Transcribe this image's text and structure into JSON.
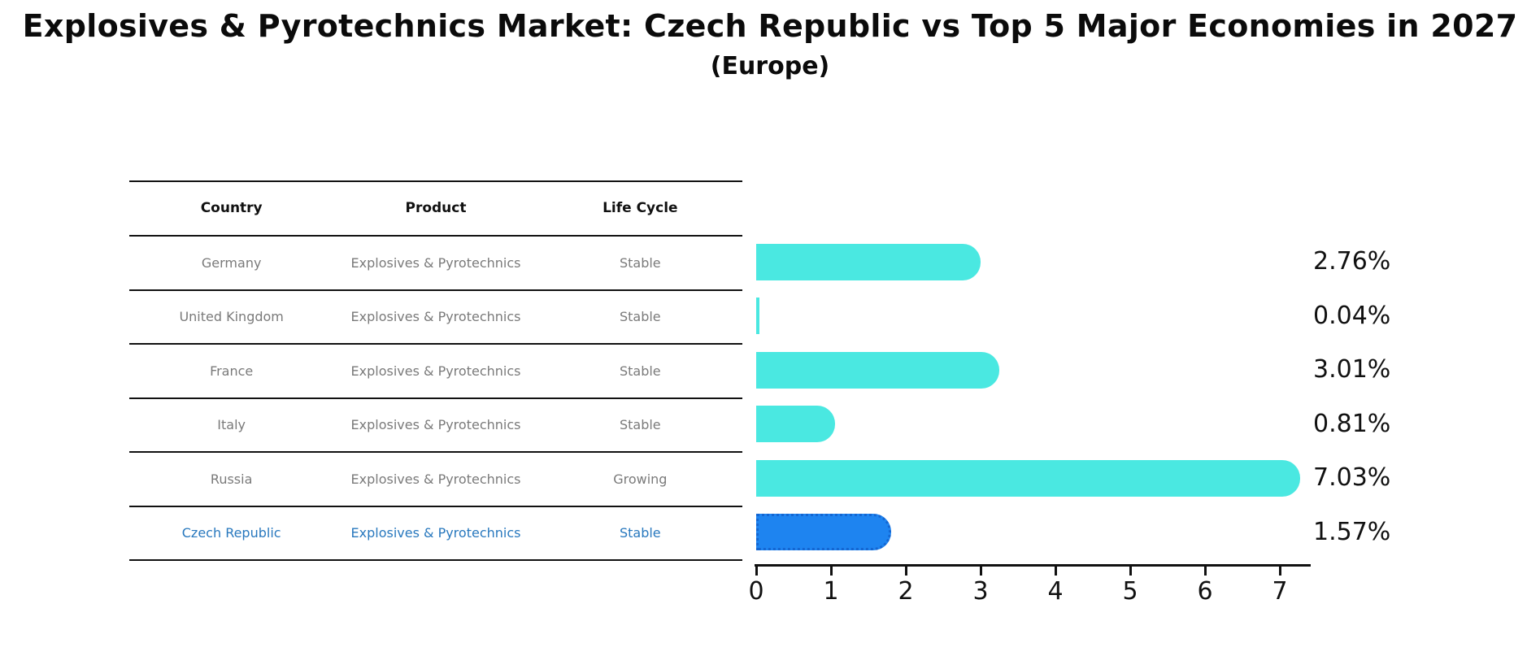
{
  "title": "Explosives & Pyrotechnics Market: Czech Republic vs Top 5 Major Economies in 2027",
  "subtitle": "(Europe)",
  "table": {
    "headers": [
      "Country",
      "Product",
      "Life Cycle"
    ],
    "rows": [
      {
        "country": "Germany",
        "product": "Explosives & Pyrotechnics",
        "life_cycle": "Stable",
        "highlight": false
      },
      {
        "country": "United Kingdom",
        "product": "Explosives & Pyrotechnics",
        "life_cycle": "Stable",
        "highlight": false
      },
      {
        "country": "France",
        "product": "Explosives & Pyrotechnics",
        "life_cycle": "Stable",
        "highlight": false
      },
      {
        "country": "Italy",
        "product": "Explosives & Pyrotechnics",
        "life_cycle": "Stable",
        "highlight": false
      },
      {
        "country": "Russia",
        "product": "Explosives & Pyrotechnics",
        "life_cycle": "Growing",
        "highlight": false
      },
      {
        "country": "Czech Republic",
        "product": "Explosives & Pyrotechnics",
        "life_cycle": "Stable",
        "highlight": true
      }
    ]
  },
  "chart_data": {
    "type": "bar",
    "orientation": "horizontal",
    "title": "Explosives & Pyrotechnics Market: Czech Republic vs Top 5 Major Economies in 2027",
    "subtitle": "(Europe)",
    "categories": [
      "Germany",
      "United Kingdom",
      "France",
      "Italy",
      "Russia",
      "Czech Republic"
    ],
    "values": [
      2.76,
      0.04,
      3.01,
      0.81,
      7.03,
      1.57
    ],
    "value_labels": [
      "2.76%",
      "0.04%",
      "3.01%",
      "0.81%",
      "7.03%",
      "1.57%"
    ],
    "highlight_index": 5,
    "xlim": [
      0,
      7.4
    ],
    "x_ticks": [
      0,
      1,
      2,
      3,
      4,
      5,
      6,
      7
    ],
    "xlabel": "",
    "ylabel": "",
    "grid": false,
    "legend": false
  },
  "colors": {
    "bar": "#4ae8e1",
    "highlight_bar": "#1e84f0",
    "highlight_border": "#1466d2",
    "highlight_text": "#2878be",
    "text_dark": "#111111",
    "text_muted": "#7a7a7a",
    "background": "#ffffff"
  }
}
